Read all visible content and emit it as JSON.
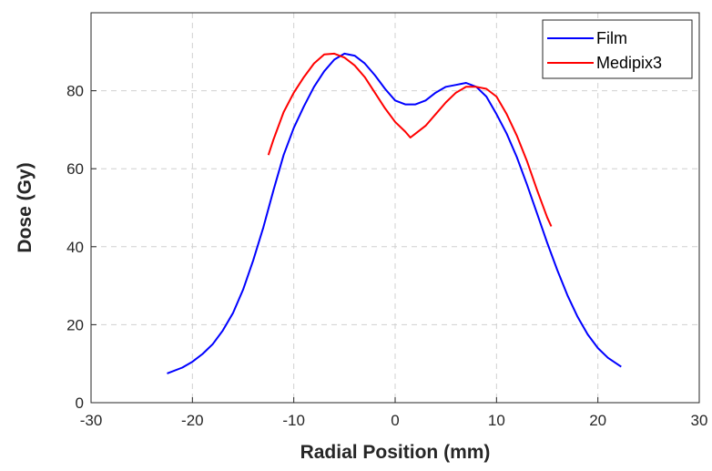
{
  "chart_data": {
    "type": "line",
    "xlabel": "Radial Position (mm)",
    "ylabel": "Dose (Gy)",
    "xlim": [
      -30,
      30
    ],
    "ylim": [
      0,
      100
    ],
    "xticks": [
      -30,
      -20,
      -10,
      0,
      10,
      20,
      30
    ],
    "yticks": [
      0,
      20,
      40,
      60,
      80
    ],
    "grid": true,
    "legend_position": "top-right",
    "series": [
      {
        "name": "Film",
        "color": "#0000ff",
        "points": [
          [
            -22.5,
            7.5
          ],
          [
            -21,
            9.0
          ],
          [
            -20,
            10.5
          ],
          [
            -19,
            12.5
          ],
          [
            -18,
            15.0
          ],
          [
            -17,
            18.5
          ],
          [
            -16,
            23.0
          ],
          [
            -15,
            29.0
          ],
          [
            -14,
            36.5
          ],
          [
            -13,
            45.0
          ],
          [
            -12,
            54.5
          ],
          [
            -11,
            63.5
          ],
          [
            -10,
            70.5
          ],
          [
            -9,
            76.0
          ],
          [
            -8,
            81.0
          ],
          [
            -7,
            85.0
          ],
          [
            -6,
            88.0
          ],
          [
            -5,
            89.5
          ],
          [
            -4,
            89.0
          ],
          [
            -3,
            87.0
          ],
          [
            -2,
            84.0
          ],
          [
            -1,
            80.5
          ],
          [
            0,
            77.5
          ],
          [
            1,
            76.5
          ],
          [
            2,
            76.5
          ],
          [
            3,
            77.5
          ],
          [
            4,
            79.5
          ],
          [
            5,
            81.0
          ],
          [
            6,
            81.5
          ],
          [
            7,
            82.0
          ],
          [
            8,
            81.0
          ],
          [
            9,
            78.5
          ],
          [
            10,
            74.0
          ],
          [
            11,
            69.0
          ],
          [
            12,
            63.0
          ],
          [
            13,
            56.0
          ],
          [
            14,
            48.5
          ],
          [
            15,
            41.0
          ],
          [
            16,
            34.0
          ],
          [
            17,
            27.5
          ],
          [
            18,
            22.0
          ],
          [
            19,
            17.5
          ],
          [
            20,
            14.0
          ],
          [
            21,
            11.5
          ],
          [
            22.3,
            9.2
          ]
        ]
      },
      {
        "name": "Medipix3",
        "color": "#ff0000",
        "points": [
          [
            -12.5,
            63.5
          ],
          [
            -12,
            67.5
          ],
          [
            -11,
            74.5
          ],
          [
            -10,
            79.5
          ],
          [
            -9,
            83.5
          ],
          [
            -8,
            87.0
          ],
          [
            -7,
            89.3
          ],
          [
            -6,
            89.5
          ],
          [
            -5,
            88.5
          ],
          [
            -4,
            86.5
          ],
          [
            -3,
            83.5
          ],
          [
            -2,
            79.5
          ],
          [
            -1,
            75.5
          ],
          [
            0,
            72.0
          ],
          [
            1,
            69.5
          ],
          [
            1.5,
            68.0
          ],
          [
            2,
            69.0
          ],
          [
            3,
            71.0
          ],
          [
            4,
            74.0
          ],
          [
            5,
            77.0
          ],
          [
            6,
            79.5
          ],
          [
            7,
            81.0
          ],
          [
            8,
            81.0
          ],
          [
            9,
            80.5
          ],
          [
            10,
            78.5
          ],
          [
            11,
            74.0
          ],
          [
            12,
            68.5
          ],
          [
            13,
            62.0
          ],
          [
            14,
            54.5
          ],
          [
            15,
            47.5
          ],
          [
            15.4,
            45.2
          ]
        ]
      }
    ]
  }
}
